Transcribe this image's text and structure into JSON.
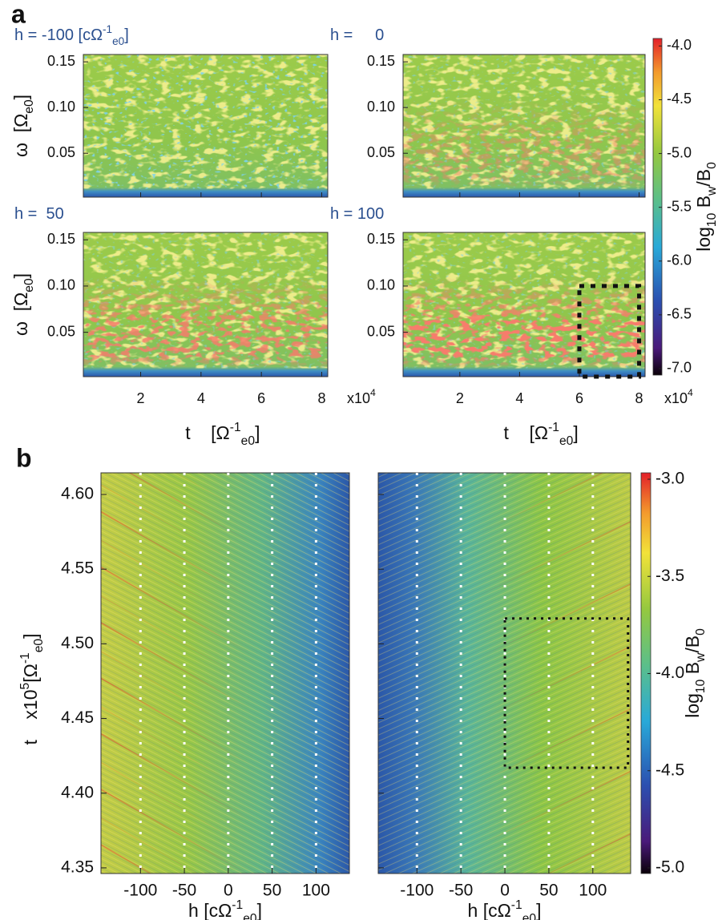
{
  "figure": {
    "a": {
      "label": "a",
      "panels": [
        {
          "title": [
            {
              "text": "h = -100 ",
              "pos": "base"
            },
            {
              "text": "[cΩ",
              "pos": "base"
            },
            {
              "text": "-1",
              "pos": "sup"
            },
            {
              "text": "e0",
              "pos": "sub"
            },
            {
              "text": "]",
              "pos": "base"
            }
          ]
        },
        {
          "title": [
            {
              "text": "h =     0",
              "pos": "base"
            }
          ]
        },
        {
          "title": [
            {
              "text": "h =  50",
              "pos": "base"
            }
          ]
        },
        {
          "title": [
            {
              "text": "h = 100",
              "pos": "base"
            }
          ],
          "box": {
            "x": [
              6,
              8
            ],
            "y": [
              0.002,
              0.1
            ]
          }
        }
      ],
      "xlim": [
        0.1,
        8.2
      ],
      "xticks": [
        2,
        4,
        6,
        8
      ],
      "ylim": [
        0.002,
        0.158
      ],
      "yticks": [
        0.05,
        {
          "value": 0.1,
          "label": "0.10"
        },
        0.15
      ],
      "xlabel": [
        {
          "text": "t    [Ω",
          "pos": "base"
        },
        {
          "text": "-1",
          "pos": "sup"
        },
        {
          "text": "e0",
          "pos": "sub"
        },
        {
          "text": "]",
          "pos": "base"
        }
      ],
      "ylabel": [
        {
          "text": "ω  [Ω",
          "pos": "base"
        },
        {
          "text": "e0",
          "pos": "sub"
        },
        {
          "text": "]",
          "pos": "base"
        }
      ],
      "x_multiplier": [
        {
          "text": "x10",
          "pos": "base"
        },
        {
          "text": "4",
          "pos": "sup"
        }
      ],
      "colorbar": {
        "clim": [
          -7.06,
          -3.93
        ],
        "ticks": [
          {
            "value": -4,
            "label": "-4.0"
          },
          {
            "value": -4.5,
            "label": "-4.5"
          },
          {
            "value": -5,
            "label": "-5.0"
          },
          {
            "value": -5.5,
            "label": "-5.5"
          },
          {
            "value": -6,
            "label": "-6.0"
          },
          {
            "value": -6.5,
            "label": "-6.5"
          },
          {
            "value": -7,
            "label": "-7.0"
          }
        ],
        "label": [
          {
            "text": "log",
            "pos": "base"
          },
          {
            "text": "10",
            "pos": "sub"
          },
          {
            "text": " B",
            "pos": "base"
          },
          {
            "text": "w",
            "pos": "sub"
          },
          {
            "text": "/B",
            "pos": "base"
          },
          {
            "text": "0",
            "pos": "sub"
          }
        ]
      }
    },
    "b": {
      "label": "b",
      "panels": [
        {
          "xlim": [
            -145,
            138
          ]
        },
        {
          "xlim": [
            -144,
            143
          ],
          "box": {
            "x": [
              0,
              140
            ],
            "y": [
              4.417,
              4.517
            ]
          }
        }
      ],
      "xticks": [
        -100,
        -50,
        0,
        50,
        100
      ],
      "grid": true,
      "ylim": [
        4.3462,
        4.6145
      ],
      "yticks": [
        {
          "value": 4.35,
          "label": "4.35"
        },
        {
          "value": 4.4,
          "label": "4.40"
        },
        {
          "value": 4.45,
          "label": "4.45"
        },
        {
          "value": 4.5,
          "label": "4.50"
        },
        {
          "value": 4.55,
          "label": "4.55"
        },
        {
          "value": 4.6,
          "label": "4.60"
        }
      ],
      "xlabel": [
        {
          "text": "h [cΩ",
          "pos": "base"
        },
        {
          "text": "-1",
          "pos": "sup"
        },
        {
          "text": "e0",
          "pos": "sub"
        },
        {
          "text": "]",
          "pos": "base"
        }
      ],
      "ylabel": [
        {
          "text": "t    x10",
          "pos": "base"
        },
        {
          "text": "5",
          "pos": "sup"
        },
        {
          "text": "[Ω",
          "pos": "base"
        },
        {
          "text": "-1",
          "pos": "sup"
        },
        {
          "text": "e0",
          "pos": "sub"
        },
        {
          "text": "]",
          "pos": "base"
        }
      ],
      "colorbar": {
        "clim": [
          -5.029,
          -2.967
        ],
        "ticks": [
          {
            "value": -3,
            "label": "-3.0"
          },
          {
            "value": -3.5,
            "label": "-3.5"
          },
          {
            "value": -4,
            "label": "-4.0"
          },
          {
            "value": -4.5,
            "label": "-4.5"
          },
          {
            "value": -5,
            "label": "-5.0"
          }
        ],
        "label": [
          {
            "text": "log",
            "pos": "base"
          },
          {
            "text": "10",
            "pos": "sub"
          },
          {
            "text": " B",
            "pos": "base"
          },
          {
            "text": "w",
            "pos": "sub"
          },
          {
            "text": "/B",
            "pos": "base"
          },
          {
            "text": "0",
            "pos": "sub"
          }
        ]
      }
    }
  }
}
